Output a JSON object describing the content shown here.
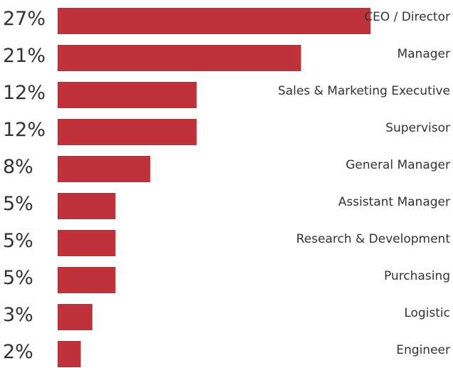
{
  "chart_data": {
    "type": "bar",
    "orientation": "horizontal",
    "categories": [
      "CEO / Director",
      "Manager",
      "Sales & Marketing Executive",
      "Supervisor",
      "General Manager",
      "Assistant Manager",
      "Research & Development",
      "Purchasing",
      "Logistic",
      "Engineer"
    ],
    "values": [
      27,
      21,
      12,
      12,
      8,
      5,
      5,
      5,
      3,
      2
    ],
    "value_labels": [
      "27%",
      "21%",
      "12%",
      "12%",
      "8%",
      "5%",
      "5%",
      "5%",
      "3%",
      "2%"
    ],
    "color": "#c1313a"
  }
}
